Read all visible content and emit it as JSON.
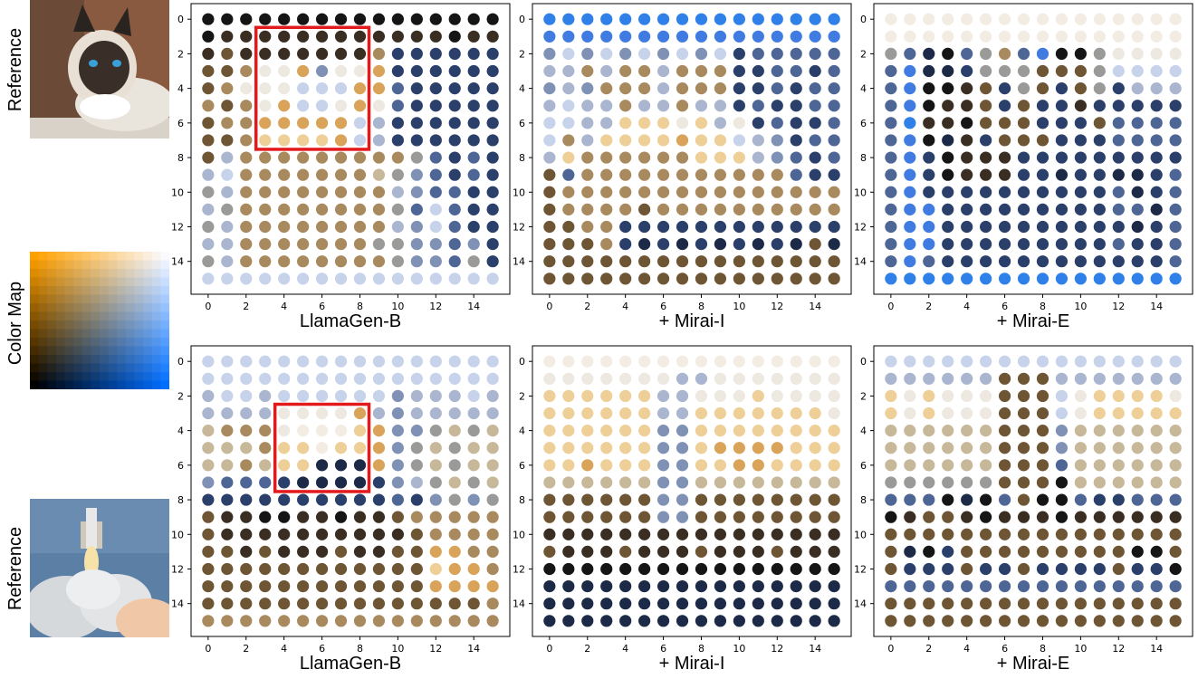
{
  "side_labels": [
    "Reference",
    "Color Map",
    "Reference"
  ],
  "icons": [
    "cat-photo",
    "rocket-launch-photo",
    "2d-color-map"
  ],
  "chart_data": [
    {
      "type": "scatter",
      "title": "LlamaGen-B",
      "row": 0,
      "col": 0,
      "grid_size": 16,
      "xticks": [
        0,
        2,
        4,
        6,
        8,
        10,
        12,
        14
      ],
      "yticks": [
        0,
        2,
        4,
        6,
        8,
        10,
        12,
        14
      ],
      "highlight": {
        "x0": 3,
        "y0": 1,
        "x1": 8,
        "y1": 7,
        "color": "#e31a1c"
      }
    },
    {
      "type": "scatter",
      "title": "+ Mirai-I",
      "row": 0,
      "col": 1,
      "grid_size": 16,
      "xticks": [
        0,
        2,
        4,
        6,
        8,
        10,
        12,
        14
      ],
      "yticks": [
        0,
        2,
        4,
        6,
        8,
        10,
        12,
        14
      ]
    },
    {
      "type": "scatter",
      "title": "+ Mirai-E",
      "row": 0,
      "col": 2,
      "grid_size": 16,
      "xticks": [
        0,
        2,
        4,
        6,
        8,
        10,
        12,
        14
      ],
      "yticks": [
        0,
        2,
        4,
        6,
        8,
        10,
        12,
        14
      ]
    },
    {
      "type": "scatter",
      "title": "LlamaGen-B",
      "row": 1,
      "col": 0,
      "grid_size": 16,
      "xticks": [
        0,
        2,
        4,
        6,
        8,
        10,
        12,
        14
      ],
      "yticks": [
        0,
        2,
        4,
        6,
        8,
        10,
        12,
        14
      ],
      "highlight": {
        "x0": 4,
        "y0": 3,
        "x1": 8,
        "y1": 7,
        "color": "#e31a1c"
      }
    },
    {
      "type": "scatter",
      "title": "+ Mirai-I",
      "row": 1,
      "col": 1,
      "grid_size": 16,
      "xticks": [
        0,
        2,
        4,
        6,
        8,
        10,
        12,
        14
      ],
      "yticks": [
        0,
        2,
        4,
        6,
        8,
        10,
        12,
        14
      ]
    },
    {
      "type": "scatter",
      "title": "+ Mirai-E",
      "row": 1,
      "col": 2,
      "grid_size": 16,
      "xticks": [
        0,
        2,
        4,
        6,
        8,
        10,
        12,
        14
      ],
      "yticks": [
        0,
        2,
        4,
        6,
        8,
        10,
        12,
        14
      ]
    }
  ]
}
